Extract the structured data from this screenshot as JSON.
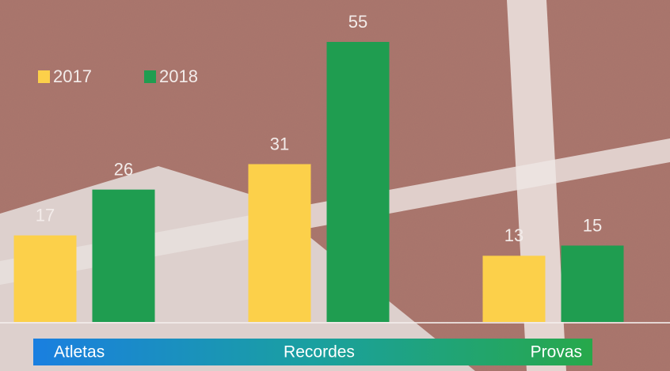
{
  "chart_data": {
    "type": "bar",
    "categories": [
      "Atletas",
      "Recordes",
      "Provas"
    ],
    "series": [
      {
        "name": "2017",
        "color": "#fcd04a",
        "values": [
          17,
          31,
          13
        ]
      },
      {
        "name": "2018",
        "color": "#1f9d50",
        "values": [
          26,
          55,
          15
        ]
      }
    ],
    "ylim": [
      0,
      55
    ]
  }
}
